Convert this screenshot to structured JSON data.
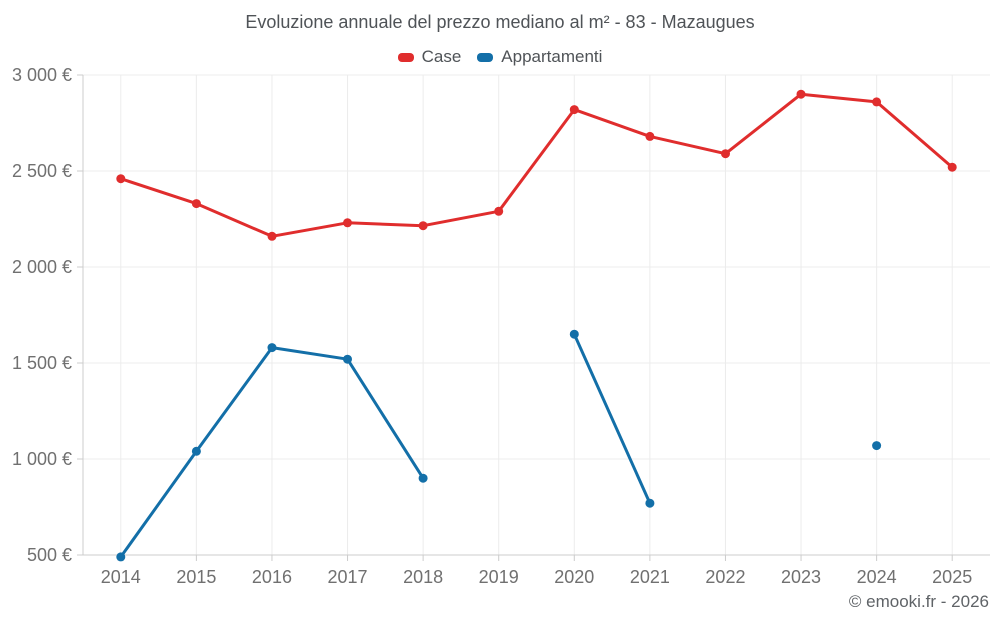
{
  "title": "Evoluzione annuale del prezzo mediano al m² - 83 - Mazaugues",
  "footer": "© emooki.fr - 2026",
  "colors": {
    "case_red": "#e02d2d",
    "appartamenti_blue": "#136fa8",
    "gridline": "#ececec",
    "axis": "#cccccc",
    "axis_label_text": "#707070",
    "title_text": "#4f5357",
    "footer_text": "#5f6367"
  },
  "chart_data": {
    "type": "line",
    "title": "Evoluzione annuale del prezzo mediano al m² - 83 - Mazaugues",
    "x": [
      2014,
      2015,
      2016,
      2017,
      2018,
      2019,
      2020,
      2021,
      2022,
      2023,
      2024,
      2025
    ],
    "series": [
      {
        "name": "Case",
        "color": "#e02d2d",
        "values": [
          2460,
          2330,
          2160,
          2230,
          2215,
          2290,
          2820,
          2680,
          2590,
          2900,
          2860,
          2520
        ]
      },
      {
        "name": "Appartamenti",
        "color": "#136fa8",
        "values": [
          490,
          1040,
          1580,
          1520,
          900,
          null,
          1650,
          770,
          null,
          null,
          1070,
          null
        ]
      }
    ],
    "xlabel": "",
    "ylabel": "",
    "y_ticks": [
      500,
      1000,
      1500,
      2000,
      2500,
      3000
    ],
    "y_tick_labels": [
      "500 €",
      "1 000 €",
      "1 500 €",
      "2 000 €",
      "2 500 €",
      "3 000 €"
    ],
    "ylim": [
      500,
      3000
    ],
    "grid": true,
    "legend_position": "top",
    "missing_data_note": "Appartamenti series has gaps at 2019, 2022, 2023, 2025; 2024 is an isolated point"
  }
}
